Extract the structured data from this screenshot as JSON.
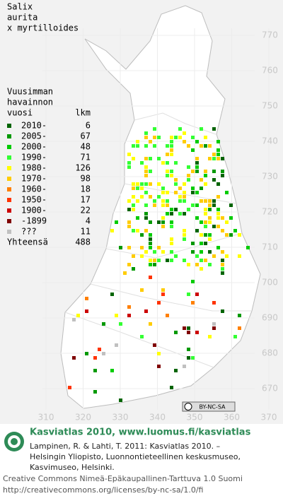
{
  "map": {
    "title": [
      "Salix",
      "aurita",
      "x myrtilloides"
    ],
    "legend": {
      "header": [
        "Vuusimman",
        "havainnon",
        "vuosi"
      ],
      "count_header": "lkm",
      "rows": [
        {
          "label": "2010-",
          "count": 6,
          "color": "#006400"
        },
        {
          "label": "2005-",
          "count": 67,
          "color": "#009900"
        },
        {
          "label": "2000-",
          "count": 48,
          "color": "#00cc00"
        },
        {
          "label": "1990-",
          "count": 71,
          "color": "#33ff33"
        },
        {
          "label": "1980-",
          "count": 126,
          "color": "#ffff00"
        },
        {
          "label": "1970-",
          "count": 98,
          "color": "#ffcc00"
        },
        {
          "label": "1960-",
          "count": 18,
          "color": "#ff8000"
        },
        {
          "label": "1950-",
          "count": 17,
          "color": "#ff3300"
        },
        {
          "label": "1900-",
          "count": 22,
          "color": "#cc0000"
        },
        {
          "label": "-1899",
          "count": 4,
          "color": "#800000"
        },
        {
          "label": "???",
          "count": 11,
          "color": "#c0c0c0"
        }
      ],
      "total_label": "Yhteensä",
      "total": 488
    },
    "y_axis": [
      770,
      760,
      750,
      740,
      730,
      720,
      710,
      700,
      690,
      680,
      670
    ],
    "x_axis": [
      310,
      320,
      330,
      340,
      350,
      360,
      370
    ],
    "license_badge": "BY-NC-SA",
    "footer": {
      "heading": "Kasviatlas 2010, www.luomus.fi/kasviatlas",
      "citation": [
        "Lampinen, R. & Lahti, T. 2011: Kasviatlas 2010. –",
        "Helsingin Yliopisto, Luonnontieteellinen keskusmuseo,",
        "Kasvimuseo, Helsinki."
      ],
      "license": [
        "Creative Commons Nimeä-Epäkaupallinen-Tarttuva 1.0 Suomi",
        "http://creativecommons.org/licenses/by-nc-sa/1.0/fi"
      ]
    }
  }
}
